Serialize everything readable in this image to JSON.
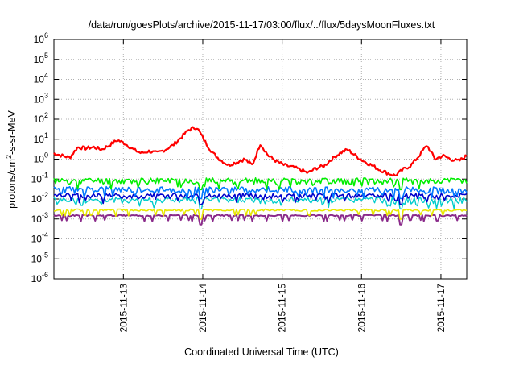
{
  "chart_data": {
    "type": "line",
    "title": "/data/run/goesPlots/archive/2015-11-17/03:00/flux/../flux/5daysMoonFluxes.txt",
    "xlabel": "Coordinated Universal Time (UTC)",
    "ylabel_parts": {
      "pre": "protons/cm",
      "sup": "2",
      "post": "-s-sr-MeV"
    },
    "yscale": "log",
    "grid": true,
    "legend": "none",
    "x_start": "2015-11-12 03:00",
    "x_end": "2015-11-17 03:00",
    "xlim_days": [
      0,
      5.2
    ],
    "x_ticks": [
      {
        "label": "2015-11-13",
        "day": 0.875
      },
      {
        "label": "2015-11-14",
        "day": 1.875
      },
      {
        "label": "2015-11-15",
        "day": 2.875
      },
      {
        "label": "2015-11-16",
        "day": 3.875
      },
      {
        "label": "2015-11-17",
        "day": 4.875
      }
    ],
    "y_tick_exponents": [
      -6,
      -5,
      -4,
      -3,
      -2,
      -1,
      0,
      1,
      2,
      3,
      4,
      5,
      6
    ],
    "y_tick_base": "10",
    "ylim_exp": [
      -6,
      6
    ],
    "series": [
      {
        "color": "#ff0000",
        "width": 2.2,
        "x": [
          0,
          0.1,
          0.2,
          0.3,
          0.4,
          0.5,
          0.6,
          0.7,
          0.8,
          0.9,
          1.0,
          1.1,
          1.2,
          1.3,
          1.4,
          1.5,
          1.6,
          1.7,
          1.8,
          1.9,
          2.0,
          2.1,
          2.2,
          2.3,
          2.4,
          2.5,
          2.6,
          2.7,
          2.8,
          2.9,
          3.0,
          3.1,
          3.2,
          3.3,
          3.4,
          3.5,
          3.6,
          3.7,
          3.8,
          3.9,
          4.0,
          4.1,
          4.2,
          4.3,
          4.4,
          4.5,
          4.6,
          4.7,
          4.8,
          4.9,
          5.0,
          5.1,
          5.2
        ],
        "y": [
          2.0,
          1.5,
          1.2,
          4.0,
          3.5,
          4.0,
          3.0,
          5.0,
          9.0,
          6.0,
          3.0,
          2.0,
          2.5,
          2.0,
          3.0,
          5.0,
          12,
          30,
          40,
          8,
          2.0,
          0.9,
          0.5,
          0.7,
          1.0,
          0.5,
          6.0,
          1.5,
          0.8,
          0.5,
          0.4,
          0.3,
          0.2,
          0.35,
          0.45,
          1.0,
          2.0,
          3.0,
          1.5,
          0.8,
          0.5,
          0.3,
          0.2,
          0.15,
          0.3,
          0.5,
          1.5,
          5.0,
          1.0,
          1.5,
          1.0,
          0.8,
          1.5
        ]
      },
      {
        "color": "#00ee00",
        "width": 1.6,
        "base": 0.085,
        "amp": 0.35,
        "seed": 11
      },
      {
        "color": "#0077ff",
        "width": 1.6,
        "base": 0.03,
        "amp": 0.4,
        "seed": 23
      },
      {
        "color": "#0000cc",
        "width": 1.6,
        "base": 0.015,
        "amp": 0.3,
        "seed": 37
      },
      {
        "color": "#00cccc",
        "width": 1.4,
        "base": 0.009,
        "amp": 0.35,
        "seed": 41
      },
      {
        "color": "#e8e800",
        "width": 1.6,
        "base": 0.0028,
        "amp": 0.12,
        "seed": 53
      },
      {
        "color": "#8a2a8a",
        "width": 2.0,
        "base": 0.0015,
        "amp": 0.08,
        "seed": 67
      }
    ]
  }
}
